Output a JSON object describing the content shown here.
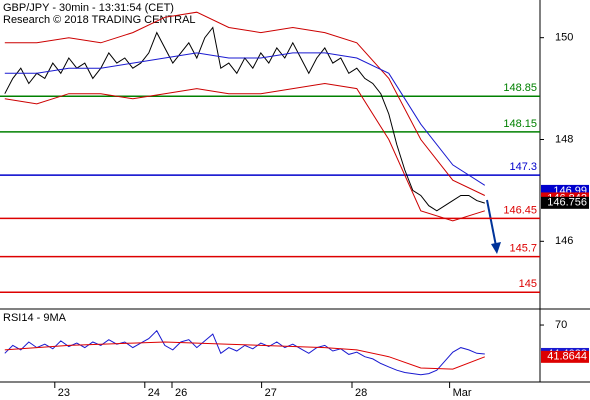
{
  "chart_data": [
    {
      "type": "line",
      "title": "GBP/JPY - 30min - 13:31:54 (CET)",
      "subtitle": "Research © 2018 TRADING CENTRAL",
      "xlim": [
        -0.6,
        66.9
      ],
      "ylim": [
        144.69,
        150.74
      ],
      "yticks": [
        146,
        148,
        150
      ],
      "series": [
        {
          "name": "GBP/JPY",
          "color": "#000000",
          "x": [
            0,
            1,
            2,
            3,
            4,
            5,
            6,
            7,
            8,
            9,
            10,
            11,
            12,
            13,
            14,
            15,
            16,
            17,
            18,
            19,
            20,
            21,
            22,
            23,
            24,
            25,
            26,
            27,
            28,
            29,
            30,
            31,
            32,
            33,
            34,
            35,
            36,
            37,
            38,
            39,
            40,
            41,
            42,
            43,
            44,
            45,
            46,
            47,
            48,
            49,
            50,
            51,
            52,
            53,
            54,
            55,
            56,
            57,
            58,
            59,
            60
          ],
          "values": [
            148.9,
            149.2,
            149.4,
            149.1,
            149.3,
            149.2,
            149.5,
            149.3,
            149.6,
            149.4,
            149.5,
            149.2,
            149.4,
            149.7,
            149.5,
            149.6,
            149.4,
            149.5,
            149.7,
            150.1,
            149.8,
            149.5,
            149.7,
            149.9,
            149.6,
            150.0,
            150.2,
            149.4,
            149.5,
            149.3,
            149.6,
            149.4,
            149.7,
            149.5,
            149.8,
            149.6,
            149.9,
            149.6,
            149.3,
            149.6,
            149.8,
            149.5,
            149.6,
            149.3,
            149.4,
            149.2,
            149.1,
            148.9,
            148.5,
            147.9,
            147.4,
            147.0,
            146.9,
            146.7,
            146.6,
            146.7,
            146.8,
            146.9,
            146.9,
            146.8,
            146.75
          ]
        },
        {
          "name": "Upper band",
          "color": "#cc0000",
          "x": [
            0,
            4,
            8,
            12,
            16,
            20,
            24,
            28,
            32,
            36,
            40,
            44,
            48,
            52,
            56,
            60
          ],
          "values": [
            149.9,
            149.9,
            150.0,
            149.9,
            150.1,
            150.4,
            150.5,
            150.2,
            150.1,
            150.2,
            150.1,
            149.9,
            149.2,
            148.0,
            147.2,
            146.9
          ]
        },
        {
          "name": "Lower band",
          "color": "#cc0000",
          "x": [
            0,
            4,
            8,
            12,
            16,
            20,
            24,
            28,
            32,
            36,
            40,
            44,
            48,
            52,
            56,
            60
          ],
          "values": [
            148.8,
            148.7,
            148.9,
            148.9,
            148.8,
            148.9,
            149.0,
            148.9,
            148.9,
            149.0,
            149.1,
            149.0,
            148.0,
            146.6,
            146.4,
            146.6
          ]
        },
        {
          "name": "Moving average",
          "color": "#1a1ad0",
          "x": [
            0,
            4,
            8,
            12,
            16,
            20,
            24,
            28,
            32,
            36,
            40,
            44,
            48,
            52,
            56,
            60
          ],
          "values": [
            149.3,
            149.3,
            149.4,
            149.4,
            149.5,
            149.6,
            149.7,
            149.6,
            149.6,
            149.7,
            149.7,
            149.6,
            149.3,
            148.3,
            147.5,
            147.1
          ]
        }
      ],
      "levels": [
        {
          "value": 148.85,
          "color": "#008000"
        },
        {
          "value": 148.15,
          "color": "#008000"
        },
        {
          "value": 147.3,
          "color": "#0000cc"
        },
        {
          "value": 146.45,
          "color": "#dd0000"
        },
        {
          "value": 145.7,
          "color": "#dd0000"
        },
        {
          "value": 145,
          "color": "#dd0000"
        }
      ],
      "last_values": [
        {
          "value": 146.99,
          "color": "#0000cc"
        },
        {
          "value": 146.842,
          "color": "#dd0000"
        },
        {
          "value": 146.756,
          "color": "#000000"
        }
      ]
    },
    {
      "type": "line",
      "title": "RSI14 - 9MA",
      "xlim": [
        -0.6,
        66.9
      ],
      "ylim": [
        19.6,
        83.3
      ],
      "yticks": [
        70
      ],
      "xticks": [
        {
          "value": 6.25,
          "label": "23"
        },
        {
          "value": 17.5,
          "label": "24"
        },
        {
          "value": 20.9,
          "label": "26"
        },
        {
          "value": 32.1,
          "label": "27"
        },
        {
          "value": 43.4,
          "label": "28"
        },
        {
          "value": 55.6,
          "label": "Mar"
        }
      ],
      "series": [
        {
          "name": "RSI14",
          "color": "#1a1ad0",
          "x": [
            0,
            1,
            2,
            3,
            4,
            5,
            6,
            7,
            8,
            9,
            10,
            11,
            12,
            13,
            14,
            15,
            16,
            17,
            18,
            19,
            20,
            21,
            22,
            23,
            24,
            25,
            26,
            27,
            28,
            29,
            30,
            31,
            32,
            33,
            34,
            35,
            36,
            37,
            38,
            39,
            40,
            41,
            42,
            43,
            44,
            45,
            46,
            47,
            48,
            49,
            50,
            51,
            52,
            53,
            54,
            55,
            56,
            57,
            58,
            59,
            60
          ],
          "values": [
            45,
            52,
            48,
            55,
            50,
            53,
            49,
            56,
            51,
            54,
            50,
            55,
            52,
            57,
            53,
            55,
            50,
            54,
            58,
            65,
            52,
            48,
            55,
            57,
            50,
            56,
            62,
            45,
            50,
            47,
            52,
            49,
            54,
            51,
            55,
            50,
            53,
            49,
            45,
            50,
            52,
            47,
            49,
            44,
            46,
            42,
            40,
            36,
            33,
            30,
            28,
            27,
            26,
            27,
            30,
            38,
            46,
            50,
            48,
            45,
            44.4038
          ]
        },
        {
          "name": "9MA",
          "color": "#dd0000",
          "x": [
            0,
            4,
            8,
            12,
            16,
            20,
            24,
            28,
            32,
            36,
            40,
            44,
            48,
            52,
            56,
            60
          ],
          "values": [
            48,
            50,
            52,
            53,
            54,
            55,
            54,
            53,
            52,
            51,
            50,
            48,
            42,
            32,
            31,
            41.8644
          ]
        }
      ],
      "last_values": [
        {
          "value": 44.4038,
          "color": "#1a1ad0"
        },
        {
          "value": 41.8644,
          "color": "#dd0000"
        }
      ]
    }
  ]
}
